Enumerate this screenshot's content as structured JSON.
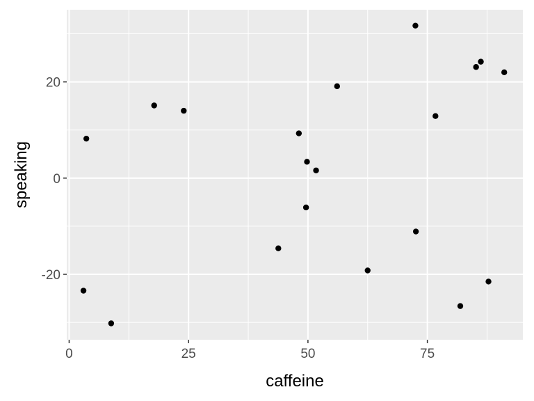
{
  "chart_data": {
    "type": "scatter",
    "title": "",
    "xlabel": "caffeine",
    "ylabel": "speaking",
    "xlim": [
      -0.5,
      95
    ],
    "ylim": [
      -33.6,
      35
    ],
    "x_ticks": [
      0,
      25,
      50,
      75
    ],
    "x_tick_labels": [
      "0",
      "25",
      "50",
      "75"
    ],
    "y_ticks": [
      -20,
      0,
      20
    ],
    "y_tick_labels": [
      "-20",
      "0",
      "20"
    ],
    "grid": true,
    "legend": "none",
    "colors": {
      "panel": "#ebebeb",
      "grid": "#ffffff",
      "point": "#000000",
      "tick": "#333333"
    },
    "series": [
      {
        "x": [
          3.0,
          3.6,
          8.8,
          17.8,
          24.0,
          43.8,
          48.1,
          49.6,
          49.8,
          51.7,
          56.1,
          62.5,
          72.5,
          72.6,
          76.7,
          81.9,
          85.2,
          86.2,
          87.8,
          91.1
        ],
        "y": [
          -23.4,
          8.2,
          -30.2,
          15.1,
          14.0,
          -14.6,
          9.3,
          -6.1,
          3.4,
          1.6,
          19.1,
          -19.2,
          31.7,
          -11.1,
          12.9,
          -26.6,
          23.1,
          24.2,
          -21.5,
          22.0
        ]
      }
    ]
  }
}
